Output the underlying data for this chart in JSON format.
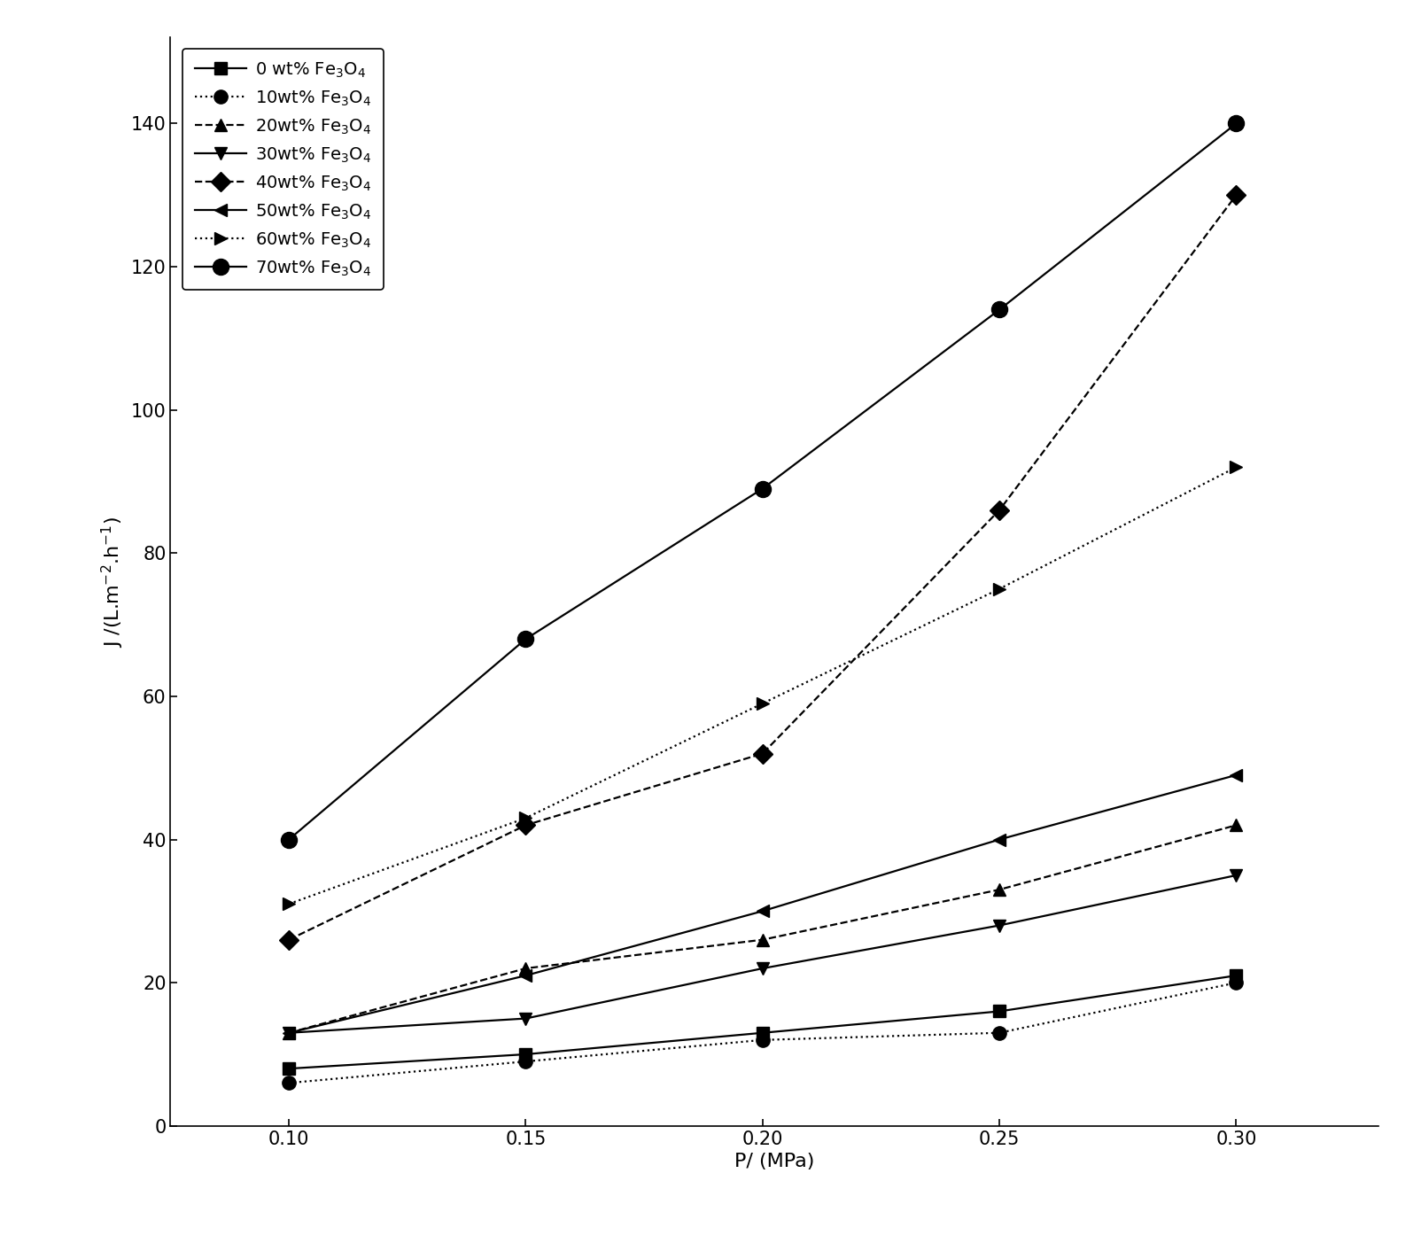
{
  "x": [
    0.1,
    0.15,
    0.2,
    0.25,
    0.3
  ],
  "series": [
    {
      "label": "0 wt% Fe$_3$O$_4$",
      "values": [
        8,
        10,
        13,
        16,
        21
      ],
      "linestyle": "-",
      "marker": "s",
      "markersize": 10
    },
    {
      "label": "10wt% Fe$_3$O$_4$",
      "values": [
        6,
        9,
        12,
        13,
        20
      ],
      "linestyle": ":",
      "marker": "o",
      "markersize": 11
    },
    {
      "label": "20wt% Fe$_3$O$_4$",
      "values": [
        13,
        22,
        26,
        33,
        42
      ],
      "linestyle": "--",
      "marker": "^",
      "markersize": 10
    },
    {
      "label": "30wt% Fe$_3$O$_4$",
      "values": [
        13,
        15,
        22,
        28,
        35
      ],
      "linestyle": "-",
      "marker": "v",
      "markersize": 10
    },
    {
      "label": "40wt% Fe$_3$O$_4$",
      "values": [
        26,
        42,
        52,
        86,
        130
      ],
      "linestyle": "--",
      "marker": "D",
      "markersize": 11
    },
    {
      "label": "50wt% Fe$_3$O$_4$",
      "values": [
        13,
        21,
        30,
        40,
        49
      ],
      "linestyle": "-",
      "marker": "<",
      "markersize": 10
    },
    {
      "label": "60wt% Fe$_3$O$_4$",
      "values": [
        31,
        43,
        59,
        75,
        92
      ],
      "linestyle": ":",
      "marker": ">",
      "markersize": 10
    },
    {
      "label": "70wt% Fe$_3$O$_4$",
      "values": [
        40,
        68,
        89,
        114,
        140
      ],
      "linestyle": "-",
      "marker": "o",
      "markersize": 13
    }
  ],
  "xlabel": "P/ (MPa)",
  "ylabel": "J /(L.m$^{-2}$.h$^{-1}$)",
  "xlim": [
    0.075,
    0.33
  ],
  "ylim": [
    0,
    152
  ],
  "xticks": [
    0.1,
    0.15,
    0.2,
    0.25,
    0.3
  ],
  "yticks": [
    0,
    20,
    40,
    60,
    80,
    100,
    120,
    140
  ],
  "background_color": "#ffffff",
  "legend_fontsize": 14,
  "axis_label_fontsize": 16,
  "tick_fontsize": 15,
  "linewidth": 1.6
}
